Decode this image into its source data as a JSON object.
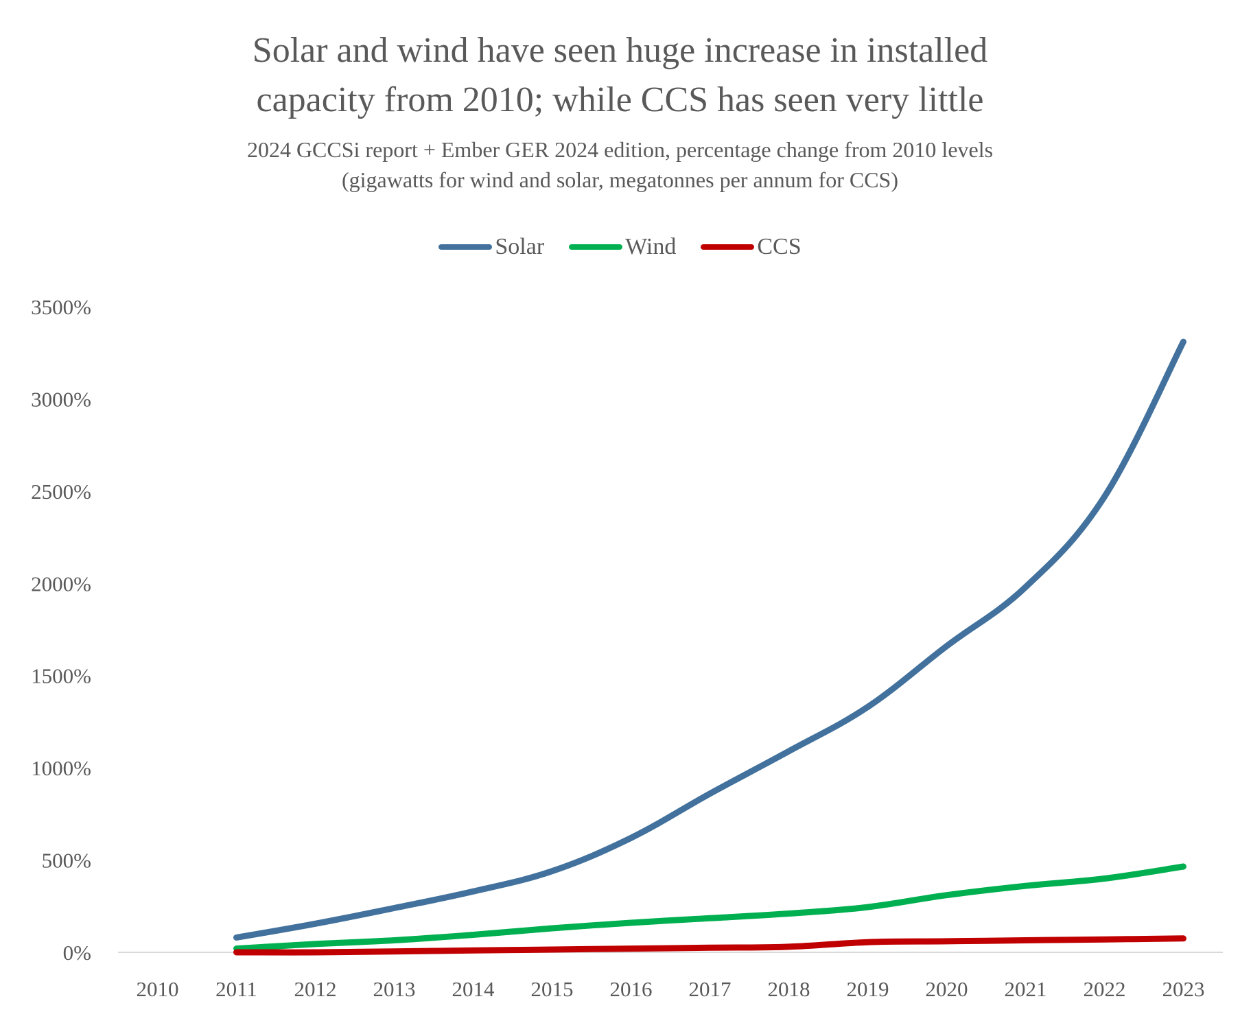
{
  "chart_data": {
    "type": "line",
    "title_line1": "Solar and wind have seen huge increase in installed",
    "title_line2": "capacity from 2010; while CCS has seen very little",
    "subtitle_line1": "2024 GCCSi report + Ember GER 2024 edition, percentage change from 2010 levels",
    "subtitle_line2": "(gigawatts for wind and solar, megatonnes per annum for CCS)",
    "categories": [
      "2010",
      "2011",
      "2012",
      "2013",
      "2014",
      "2015",
      "2016",
      "2017",
      "2018",
      "2019",
      "2020",
      "2021",
      "2022",
      "2023"
    ],
    "y_ticks": [
      "0%",
      "500%",
      "1000%",
      "1500%",
      "2000%",
      "2500%",
      "3000%",
      "3500%"
    ],
    "ylim": [
      0,
      3500
    ],
    "grid": false,
    "legend_position": "top",
    "series": [
      {
        "name": "Solar",
        "color": "#41719C",
        "values": [
          null,
          80,
          155,
          240,
          330,
          440,
          620,
          860,
          1090,
          1330,
          1660,
          1980,
          2470,
          3310
        ]
      },
      {
        "name": "Wind",
        "color": "#00B050",
        "values": [
          null,
          20,
          45,
          65,
          95,
          130,
          160,
          185,
          210,
          245,
          310,
          360,
          400,
          465
        ]
      },
      {
        "name": "CCS",
        "color": "#C00000",
        "values": [
          null,
          0,
          0,
          5,
          10,
          15,
          20,
          25,
          30,
          55,
          60,
          65,
          70,
          75
        ]
      }
    ]
  }
}
